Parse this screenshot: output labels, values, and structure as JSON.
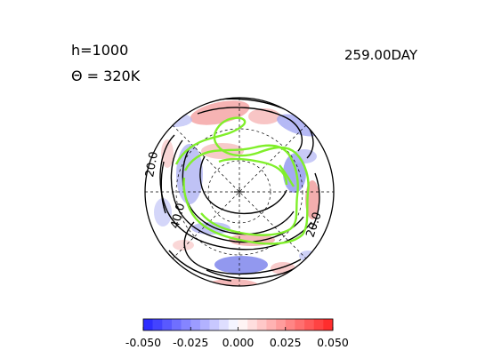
{
  "header": {
    "param_h": "h=1000",
    "param_theta": "Θ = 320K",
    "time": "259.00DAY"
  },
  "chart_data": {
    "type": "polar-contour",
    "projection": "polar stereographic (south pole)",
    "contour_labels": [
      "20.0",
      "40.0",
      "20.0"
    ],
    "colorbar": {
      "min": -0.05,
      "max": 0.05,
      "tick_values": [
        -0.05,
        -0.025,
        0,
        0.025,
        0.05
      ],
      "tick_labels": [
        "-0.050",
        "-0.025",
        "0.000",
        "0.025",
        "0.050"
      ],
      "colormap": "blue-white-red",
      "negative_color": "#2222ff",
      "positive_color": "#ff2222"
    },
    "overlay_contour_color": "#80ef2a",
    "line_contour_color": "#000000",
    "grid": true
  }
}
